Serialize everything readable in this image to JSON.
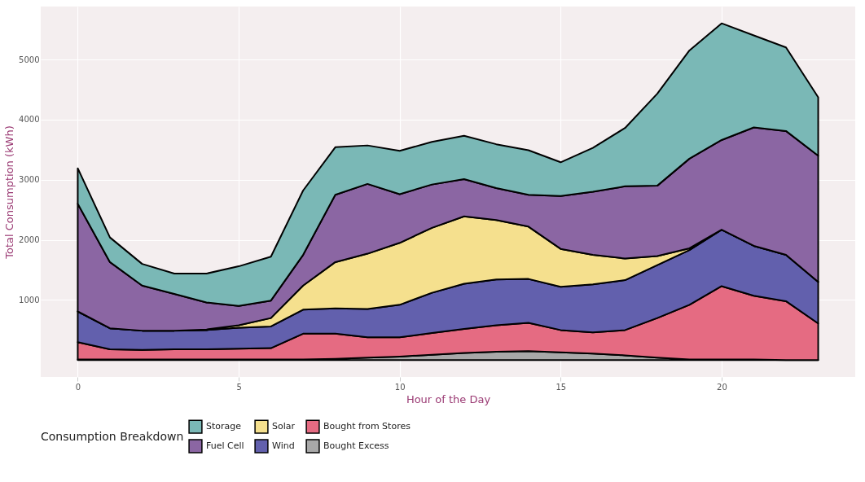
{
  "chart_data": {
    "type": "area",
    "stacked": true,
    "xlabel": "Hour of the Day",
    "ylabel": "Total Consumption (kWh)",
    "legend_title": "Consumption Breakdown",
    "legend": "bottom",
    "grid": true,
    "x": [
      0,
      1,
      2,
      3,
      4,
      5,
      6,
      7,
      8,
      9,
      10,
      11,
      12,
      13,
      14,
      15,
      16,
      17,
      18,
      19,
      20,
      21,
      22,
      23
    ],
    "xlim": [
      -1.15,
      24.15
    ],
    "xticks": [
      0,
      5,
      10,
      15,
      20
    ],
    "ylim": [
      -280,
      5880
    ],
    "yticks": [
      1000,
      2000,
      3000,
      4000,
      5000
    ],
    "series": [
      {
        "name": "Bought Excess",
        "color": "#a8a8a8",
        "values": [
          10,
          10,
          10,
          10,
          10,
          10,
          10,
          10,
          20,
          40,
          60,
          90,
          120,
          140,
          150,
          130,
          110,
          80,
          40,
          10,
          10,
          10,
          0,
          0
        ]
      },
      {
        "name": "Bought from Stores",
        "color": "#e56b82",
        "values": [
          290,
          170,
          160,
          170,
          170,
          180,
          190,
          430,
          420,
          340,
          320,
          360,
          400,
          440,
          470,
          370,
          350,
          420,
          660,
          910,
          1220,
          1060,
          980,
          610
        ]
      },
      {
        "name": "Wind",
        "color": "#6260ad",
        "values": [
          510,
          350,
          320,
          310,
          320,
          350,
          360,
          400,
          420,
          470,
          540,
          670,
          750,
          760,
          730,
          720,
          800,
          830,
          880,
          910,
          940,
          830,
          770,
          690
        ]
      },
      {
        "name": "Solar",
        "color": "#f5e08e",
        "values": [
          0,
          0,
          0,
          0,
          10,
          40,
          140,
          400,
          770,
          920,
          1030,
          1080,
          1120,
          990,
          870,
          630,
          490,
          360,
          150,
          30,
          0,
          0,
          0,
          0
        ]
      },
      {
        "name": "Fuel Cell",
        "color": "#8b66a3",
        "values": [
          1790,
          1100,
          750,
          610,
          450,
          320,
          290,
          510,
          1120,
          1160,
          810,
          720,
          620,
          530,
          530,
          880,
          1050,
          1200,
          1170,
          1490,
          1490,
          1970,
          2060,
          2100
        ]
      },
      {
        "name": "Storage",
        "color": "#7ab8b6",
        "values": [
          590,
          410,
          360,
          340,
          480,
          660,
          730,
          1070,
          790,
          640,
          720,
          710,
          720,
          730,
          740,
          560,
          730,
          970,
          1530,
          1800,
          1940,
          1530,
          1390,
          970
        ]
      }
    ]
  }
}
